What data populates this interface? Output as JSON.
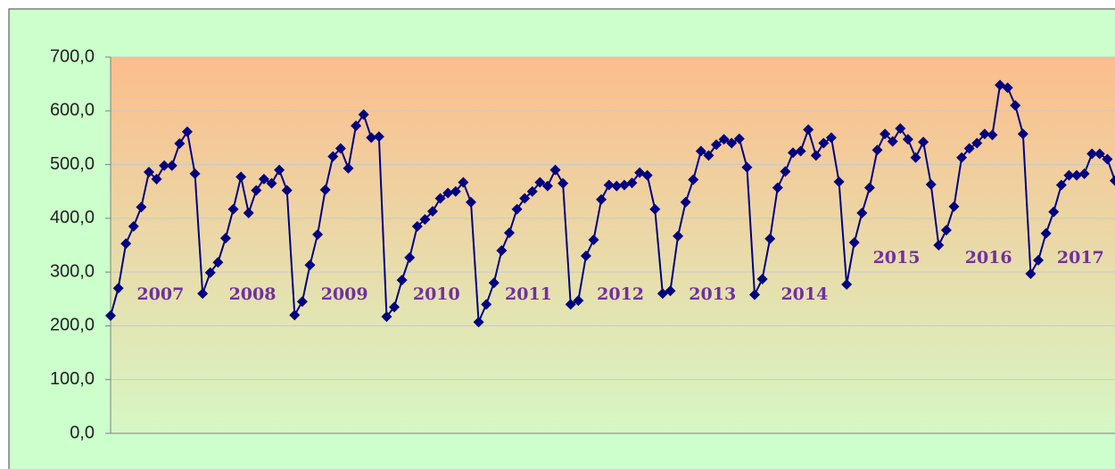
{
  "chart_data": {
    "type": "line",
    "categories": [
      null,
      null,
      null,
      null,
      null,
      null,
      null,
      null,
      null,
      null,
      null,
      null,
      null,
      null,
      null,
      null,
      null,
      null,
      null,
      null,
      null,
      null,
      null,
      null,
      null,
      null,
      null,
      null,
      null,
      null,
      null,
      null,
      null,
      null,
      null,
      null,
      null,
      null,
      null,
      null,
      null,
      null,
      null,
      null,
      null,
      null,
      null,
      null,
      null,
      null,
      null,
      null,
      null,
      null,
      null,
      null,
      null,
      null,
      null,
      null,
      null,
      null,
      null,
      null,
      null,
      null,
      null,
      null,
      null,
      null,
      null,
      null,
      null,
      null,
      null,
      null,
      null,
      null,
      null,
      null,
      null,
      null,
      null,
      null,
      null,
      null,
      null,
      null,
      null,
      null,
      null,
      null,
      null,
      null,
      null,
      null,
      null,
      null,
      null,
      null,
      null,
      null,
      null,
      null,
      null,
      null,
      null,
      null,
      null,
      null,
      null,
      null,
      null,
      null,
      null,
      null,
      null,
      null,
      null,
      null,
      null,
      null,
      null,
      null,
      null,
      null,
      null,
      null,
      null,
      null,
      null,
      null
    ],
    "series": [
      {
        "color": "#000080",
        "values": [
          219,
          270,
          353,
          385,
          421,
          486,
          473,
          498,
          498,
          539,
          561,
          483,
          260,
          299,
          318,
          363,
          417,
          477,
          410,
          452,
          473,
          465,
          490,
          452,
          220,
          245,
          313,
          370,
          453,
          515,
          530,
          493,
          572,
          593,
          550,
          552,
          217,
          235,
          285,
          327,
          385,
          398,
          413,
          437,
          447,
          450,
          467,
          430,
          207,
          240,
          280,
          340,
          373,
          417,
          437,
          450,
          467,
          460,
          490,
          465,
          240,
          247,
          330,
          360,
          435,
          462,
          460,
          462,
          466,
          485,
          480,
          417,
          260,
          265,
          367,
          430,
          472,
          525,
          517,
          537,
          547,
          540,
          548,
          495,
          258,
          287,
          362,
          457,
          487,
          522,
          525,
          565,
          517,
          540,
          550,
          468,
          277,
          355,
          410,
          457,
          527,
          557,
          543,
          567,
          547,
          513,
          542,
          463,
          350,
          378,
          422,
          513,
          530,
          540,
          557,
          555,
          648,
          643,
          610,
          557,
          297,
          322,
          372,
          412,
          462,
          480,
          480,
          483,
          520,
          520,
          510,
          470
        ]
      }
    ],
    "annotations": [
      "2007",
      "2008",
      "2009",
      "2010",
      "2011",
      "2012",
      "2013",
      "2014",
      "2015",
      "2016",
      "2017"
    ],
    "ylim": [
      0,
      700
    ],
    "yticks": [
      {
        "value": 0,
        "label": "0,0"
      },
      {
        "value": 100,
        "label": "100,0"
      },
      {
        "value": 200,
        "label": "200,0"
      },
      {
        "value": 300,
        "label": "300,0"
      },
      {
        "value": 400,
        "label": "400,0"
      },
      {
        "value": 500,
        "label": "500,0"
      },
      {
        "value": 600,
        "label": "600,0"
      },
      {
        "value": 700,
        "label": "700,0"
      }
    ],
    "grid": true
  }
}
